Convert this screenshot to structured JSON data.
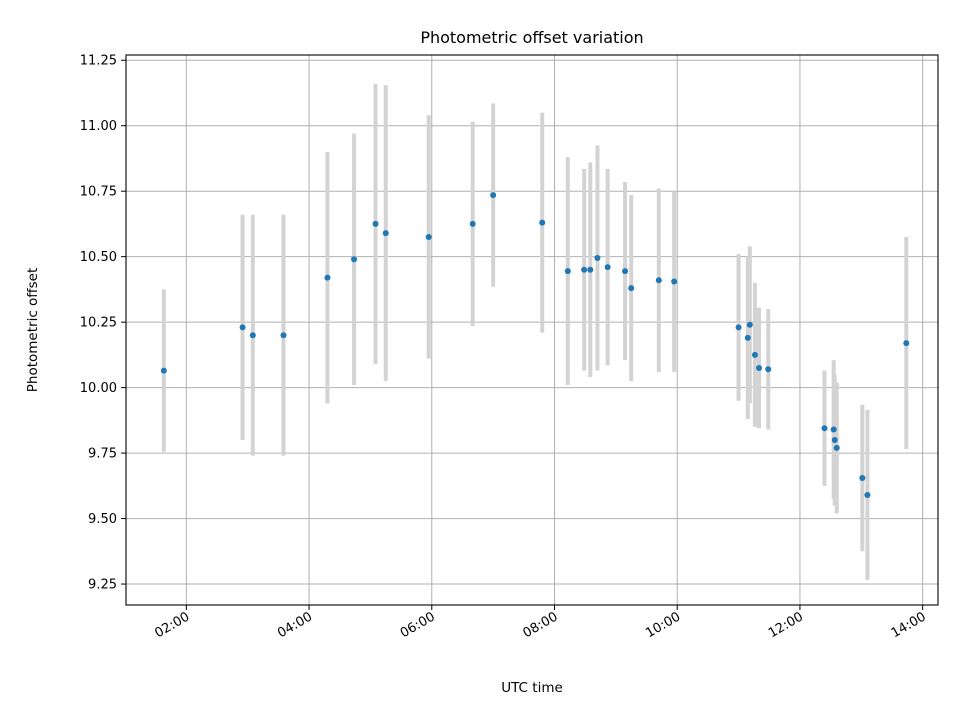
{
  "chart_data": {
    "type": "scatter",
    "title": "Photometric offset variation",
    "xlabel": "UTC time",
    "ylabel": "Photometric offset",
    "x_unit": "time (HH:MM)",
    "xlim": [
      "01:01",
      "14:15"
    ],
    "ylim": [
      9.17,
      11.27
    ],
    "x_ticks": [
      "02:00",
      "04:00",
      "06:00",
      "08:00",
      "10:00",
      "12:00",
      "14:00"
    ],
    "y_ticks": [
      "9.25",
      "9.50",
      "9.75",
      "10.00",
      "10.25",
      "10.50",
      "10.75",
      "11.00",
      "11.25"
    ],
    "grid": true,
    "marker_color": "#1f77b4",
    "errorbar_color": "#d3d3d3",
    "series": [
      {
        "points": [
          {
            "x": "01:38",
            "y": 10.065,
            "err": 0.31
          },
          {
            "x": "02:55",
            "y": 10.23,
            "err": 0.43
          },
          {
            "x": "03:05",
            "y": 10.2,
            "err": 0.46
          },
          {
            "x": "03:35",
            "y": 10.2,
            "err": 0.46
          },
          {
            "x": "04:18",
            "y": 10.42,
            "err": 0.48
          },
          {
            "x": "04:44",
            "y": 10.49,
            "err": 0.48
          },
          {
            "x": "05:05",
            "y": 10.625,
            "err": 0.535
          },
          {
            "x": "05:15",
            "y": 10.59,
            "err": 0.565
          },
          {
            "x": "05:57",
            "y": 10.575,
            "err": 0.465
          },
          {
            "x": "06:40",
            "y": 10.625,
            "err": 0.39
          },
          {
            "x": "07:00",
            "y": 10.735,
            "err": 0.35
          },
          {
            "x": "07:48",
            "y": 10.63,
            "err": 0.42
          },
          {
            "x": "08:13",
            "y": 10.445,
            "err": 0.435
          },
          {
            "x": "08:29",
            "y": 10.45,
            "err": 0.385
          },
          {
            "x": "08:35",
            "y": 10.45,
            "err": 0.41
          },
          {
            "x": "08:42",
            "y": 10.495,
            "err": 0.43
          },
          {
            "x": "08:52",
            "y": 10.46,
            "err": 0.375
          },
          {
            "x": "09:09",
            "y": 10.445,
            "err": 0.34
          },
          {
            "x": "09:15",
            "y": 10.38,
            "err": 0.355
          },
          {
            "x": "09:42",
            "y": 10.41,
            "err": 0.35
          },
          {
            "x": "09:57",
            "y": 10.405,
            "err": 0.345
          },
          {
            "x": "11:00",
            "y": 10.23,
            "err": 0.28
          },
          {
            "x": "11:09",
            "y": 10.19,
            "err": 0.31
          },
          {
            "x": "11:11",
            "y": 10.24,
            "err": 0.3
          },
          {
            "x": "11:16",
            "y": 10.125,
            "err": 0.275
          },
          {
            "x": "11:20",
            "y": 10.075,
            "err": 0.23
          },
          {
            "x": "11:29",
            "y": 10.07,
            "err": 0.23
          },
          {
            "x": "12:24",
            "y": 9.845,
            "err": 0.22
          },
          {
            "x": "12:33",
            "y": 9.84,
            "err": 0.265
          },
          {
            "x": "12:34",
            "y": 9.8,
            "err": 0.25
          },
          {
            "x": "12:36",
            "y": 9.77,
            "err": 0.25
          },
          {
            "x": "13:01",
            "y": 9.655,
            "err": 0.28
          },
          {
            "x": "13:06",
            "y": 9.59,
            "err": 0.325
          },
          {
            "x": "13:44",
            "y": 10.17,
            "err": 0.405
          }
        ]
      }
    ]
  }
}
